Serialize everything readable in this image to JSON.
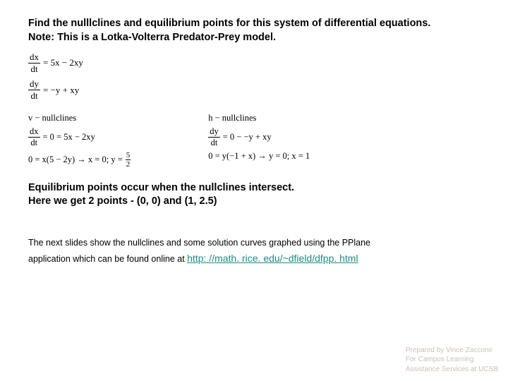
{
  "heading_line1": "Find the nulllclines and equilibrium points for this system of differential equations.",
  "heading_line2": "Note:  This is a Lotka-Volterra Predator-Prey model.",
  "ode1_rhs": "= 5x − 2xy",
  "ode2_rhs": "= −y + xy",
  "vnull_title": "v − nullclines",
  "hnull_title": "h − nullclines",
  "vnull_eq1_rhs": "= 0 = 5x − 2xy",
  "hnull_eq1_rhs": "= 0 − −y + xy",
  "vnull_eq2": "0 = x(5 − 2y) → x = 0; y =",
  "vnull_frac_n": "5",
  "vnull_frac_d": "2",
  "hnull_eq2": "0 = y(−1 + x) → y = 0; x = 1",
  "mid_line1": "Equilibrium points occur when the nullclines intersect.",
  "mid_line2": "Here we get 2 points - (0, 0) and (1, 2.5)",
  "small_line1": "The next slides show the nullclines and some solution curves graphed using the PPlane",
  "small_line2a": "application which can be found online at ",
  "link_text": "http: //math. rice. edu/~dfield/dfpp. html",
  "footer_line1": "Prepared by Vince Zaccone",
  "footer_line2": "For Campus Learning",
  "footer_line3": "Assistance Services at UCSB",
  "dx": "dx",
  "dt": "dt",
  "dy": "dy"
}
